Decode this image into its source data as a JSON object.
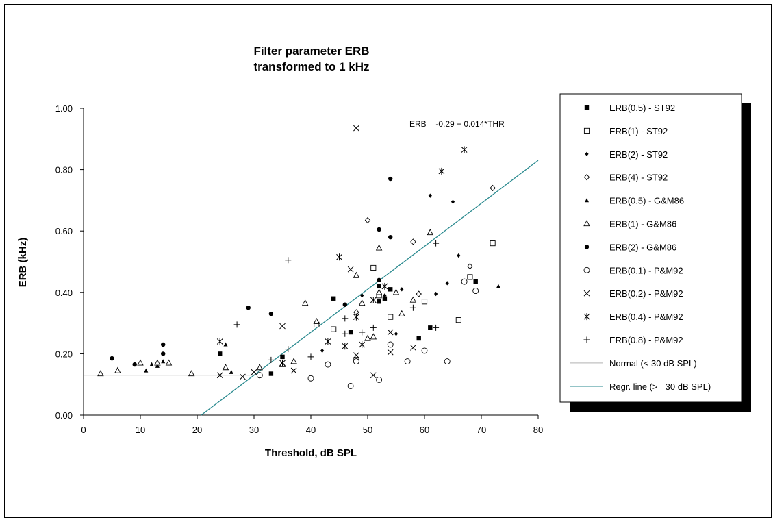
{
  "chart_data": {
    "type": "scatter",
    "title": [
      "Filter parameter ERB",
      "transformed to 1 kHz"
    ],
    "xlabel": "Threshold, dB SPL",
    "ylabel": "ERB (kHz)",
    "xlim": [
      0,
      80
    ],
    "ylim": [
      0,
      1
    ],
    "xticks": [
      "0",
      "10",
      "20",
      "30",
      "40",
      "50",
      "60",
      "70",
      "80"
    ],
    "yticks": [
      "0.00",
      "0.20",
      "0.40",
      "0.60",
      "0.80",
      "1.00"
    ],
    "grid": false,
    "legend_position": "right",
    "annotation": "ERB = -0.29 + 0.014*THR",
    "series": [
      {
        "name": "ERB(0.5) - ST92",
        "marker": "square-filled",
        "points": [
          [
            24,
            0.2
          ],
          [
            33,
            0.135
          ],
          [
            35,
            0.19
          ],
          [
            44,
            0.38
          ],
          [
            47,
            0.27
          ],
          [
            52,
            0.37
          ],
          [
            52,
            0.42
          ],
          [
            53,
            0.38
          ],
          [
            54,
            0.41
          ],
          [
            59,
            0.25
          ],
          [
            61,
            0.285
          ],
          [
            69,
            0.435
          ]
        ]
      },
      {
        "name": "ERB(1) - ST92",
        "marker": "square-open",
        "points": [
          [
            41,
            0.295
          ],
          [
            44,
            0.28
          ],
          [
            48,
            0.18
          ],
          [
            51,
            0.48
          ],
          [
            52,
            0.39
          ],
          [
            54,
            0.32
          ],
          [
            60,
            0.37
          ],
          [
            66,
            0.31
          ],
          [
            68,
            0.45
          ],
          [
            72,
            0.56
          ]
        ]
      },
      {
        "name": "ERB(2) - ST92",
        "marker": "diamond-filled",
        "points": [
          [
            42,
            0.21
          ],
          [
            49,
            0.39
          ],
          [
            53,
            0.39
          ],
          [
            55,
            0.265
          ],
          [
            56,
            0.41
          ],
          [
            62,
            0.395
          ],
          [
            64,
            0.43
          ],
          [
            61,
            0.715
          ],
          [
            65,
            0.695
          ],
          [
            66,
            0.52
          ]
        ]
      },
      {
        "name": "ERB(4) - ST92",
        "marker": "diamond-open",
        "points": [
          [
            48,
            0.335
          ],
          [
            50,
            0.635
          ],
          [
            58,
            0.565
          ],
          [
            59,
            0.395
          ],
          [
            68,
            0.485
          ],
          [
            72,
            0.74
          ]
        ]
      },
      {
        "name": "ERB(0.5) - G&M86",
        "marker": "triangle-filled",
        "points": [
          [
            11,
            0.145
          ],
          [
            12,
            0.165
          ],
          [
            13,
            0.16
          ],
          [
            14,
            0.175
          ],
          [
            25,
            0.23
          ],
          [
            26,
            0.14
          ],
          [
            73,
            0.42
          ]
        ]
      },
      {
        "name": "ERB(1) - G&M86",
        "marker": "triangle-open",
        "points": [
          [
            3,
            0.135
          ],
          [
            6,
            0.145
          ],
          [
            10,
            0.17
          ],
          [
            13,
            0.17
          ],
          [
            15,
            0.17
          ],
          [
            19,
            0.135
          ],
          [
            25,
            0.155
          ],
          [
            31,
            0.155
          ],
          [
            35,
            0.165
          ],
          [
            37,
            0.175
          ],
          [
            39,
            0.365
          ],
          [
            41,
            0.305
          ],
          [
            48,
            0.455
          ],
          [
            49,
            0.365
          ],
          [
            50,
            0.25
          ],
          [
            51,
            0.255
          ],
          [
            52,
            0.4
          ],
          [
            52,
            0.545
          ],
          [
            55,
            0.4
          ],
          [
            56,
            0.33
          ],
          [
            58,
            0.375
          ],
          [
            61,
            0.595
          ]
        ]
      },
      {
        "name": "ERB(2) - G&M86",
        "marker": "circle-filled",
        "points": [
          [
            5,
            0.185
          ],
          [
            9,
            0.165
          ],
          [
            14,
            0.2
          ],
          [
            14,
            0.23
          ],
          [
            29,
            0.35
          ],
          [
            33,
            0.33
          ],
          [
            46,
            0.36
          ],
          [
            52,
            0.44
          ],
          [
            52,
            0.605
          ],
          [
            54,
            0.58
          ],
          [
            54,
            0.77
          ]
        ]
      },
      {
        "name": "ERB(0.1) - P&M92",
        "marker": "circle-open",
        "points": [
          [
            31,
            0.13
          ],
          [
            40,
            0.12
          ],
          [
            43,
            0.165
          ],
          [
            47,
            0.095
          ],
          [
            48,
            0.175
          ],
          [
            52,
            0.115
          ],
          [
            54,
            0.23
          ],
          [
            57,
            0.175
          ],
          [
            60,
            0.21
          ],
          [
            64,
            0.175
          ],
          [
            67,
            0.435
          ],
          [
            69,
            0.405
          ]
        ]
      },
      {
        "name": "ERB(0.2) - P&M92",
        "marker": "x",
        "points": [
          [
            24,
            0.13
          ],
          [
            28,
            0.125
          ],
          [
            30,
            0.14
          ],
          [
            35,
            0.29
          ],
          [
            37,
            0.145
          ],
          [
            47,
            0.475
          ],
          [
            48,
            0.935
          ],
          [
            48,
            0.195
          ],
          [
            51,
            0.13
          ],
          [
            54,
            0.205
          ],
          [
            54,
            0.27
          ],
          [
            58,
            0.22
          ]
        ]
      },
      {
        "name": "ERB(0.4) - P&M92",
        "marker": "asterisk",
        "points": [
          [
            24,
            0.24
          ],
          [
            35,
            0.17
          ],
          [
            43,
            0.24
          ],
          [
            45,
            0.515
          ],
          [
            46,
            0.225
          ],
          [
            48,
            0.32
          ],
          [
            49,
            0.23
          ],
          [
            51,
            0.375
          ],
          [
            53,
            0.42
          ],
          [
            63,
            0.795
          ],
          [
            67,
            0.865
          ]
        ]
      },
      {
        "name": "ERB(0.8) - P&M92",
        "marker": "plus",
        "points": [
          [
            27,
            0.295
          ],
          [
            33,
            0.18
          ],
          [
            36,
            0.505
          ],
          [
            36,
            0.215
          ],
          [
            40,
            0.19
          ],
          [
            46,
            0.315
          ],
          [
            46,
            0.265
          ],
          [
            49,
            0.27
          ],
          [
            51,
            0.285
          ],
          [
            58,
            0.35
          ],
          [
            62,
            0.285
          ],
          [
            62,
            0.56
          ]
        ]
      },
      {
        "name": "Normal (< 30 dB SPL)",
        "marker": "line",
        "color": "#c0c0c0",
        "points": [
          [
            0,
            0.13
          ],
          [
            30,
            0.13
          ]
        ]
      },
      {
        "name": "Regr. line (>= 30 dB SPL)",
        "marker": "line",
        "color": "#2a8a8f",
        "points": [
          [
            20.7,
            0
          ],
          [
            80,
            0.83
          ]
        ]
      }
    ]
  }
}
